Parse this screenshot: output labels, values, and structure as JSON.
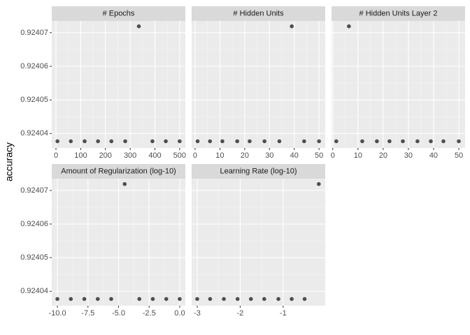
{
  "ylabel": "accuracy",
  "chart_data": [
    {
      "type": "scatter",
      "title": "# Epochs",
      "color": "#333333",
      "x": [
        6,
        60,
        116,
        170,
        224,
        280,
        335,
        390,
        444,
        500
      ],
      "values": [
        0.9240377,
        0.9240377,
        0.9240377,
        0.9240377,
        0.9240377,
        0.9240377,
        0.9240719,
        0.9240377,
        0.9240377,
        0.9240377
      ],
      "xlim": [
        -17,
        523
      ],
      "xticks": [
        0,
        100,
        200,
        300,
        400,
        500
      ],
      "ylim": [
        0.9240357,
        0.9240735
      ],
      "yticks": [
        0.92404,
        0.92405,
        0.92406,
        0.92407
      ]
    },
    {
      "type": "scatter",
      "title": "# Hidden Units",
      "color": "#333333",
      "x": [
        1,
        6,
        11,
        17,
        22,
        28,
        34,
        39,
        44,
        50
      ],
      "values": [
        0.9240377,
        0.9240377,
        0.9240377,
        0.9240377,
        0.9240377,
        0.9240377,
        0.9240377,
        0.9240719,
        0.9240377,
        0.9240377
      ],
      "xlim": [
        -1.4,
        52.5
      ],
      "xticks": [
        0,
        10,
        20,
        30,
        40,
        50
      ],
      "ylim": [
        0.9240357,
        0.9240735
      ],
      "yticks": [
        0.92404,
        0.92405,
        0.92406,
        0.92407
      ]
    },
    {
      "type": "scatter",
      "title": "# Hidden Units Layer 2",
      "color": "#333333",
      "x": [
        1.4,
        6.4,
        11.7,
        17.5,
        22.5,
        27.8,
        33.6,
        38.9,
        43.9,
        50
      ],
      "values": [
        0.9240377,
        0.9240719,
        0.9240377,
        0.9240377,
        0.9240377,
        0.9240377,
        0.9240377,
        0.9240377,
        0.9240377,
        0.9240377
      ],
      "xlim": [
        -0.5,
        52.5
      ],
      "xticks": [
        0,
        10,
        20,
        30,
        40,
        50
      ],
      "ylim": [
        0.9240357,
        0.9240735
      ],
      "yticks": [
        0.92404,
        0.92405,
        0.92406,
        0.92407
      ]
    },
    {
      "type": "scatter",
      "title": "Amount of Regularization (log-10)",
      "color": "#333333",
      "x": [
        -10,
        -8.9,
        -7.8,
        -6.7,
        -5.6,
        -4.5,
        -3.3,
        -2.2,
        -1.1,
        0
      ],
      "values": [
        0.9240377,
        0.9240377,
        0.9240377,
        0.9240377,
        0.9240377,
        0.9240719,
        0.9240377,
        0.9240377,
        0.9240377,
        0.9240377
      ],
      "xlim": [
        -10.46,
        0.46
      ],
      "xticks": [
        {
          "value": -10,
          "label": "-10.0"
        },
        -7.5,
        {
          "value": -5,
          "label": "-5.0"
        },
        -2.5,
        {
          "value": 0,
          "label": "0.0"
        }
      ],
      "ylim": [
        0.9240357,
        0.9240735
      ],
      "yticks": [
        0.92404,
        0.92405,
        0.92406,
        0.92407
      ]
    },
    {
      "type": "scatter",
      "title": "Learning Rate (log-10)",
      "color": "#333333",
      "x": [
        -3,
        -2.7,
        -2.38,
        -2.06,
        -1.75,
        -1.44,
        -1.11,
        -0.8,
        -0.5,
        -0.17
      ],
      "values": [
        0.9240377,
        0.9240377,
        0.9240377,
        0.9240377,
        0.9240377,
        0.9240377,
        0.9240377,
        0.9240377,
        0.9240377,
        0.9240719
      ],
      "xlim": [
        -3.13,
        -0.02
      ],
      "xticks": [
        -3,
        -2,
        -1
      ],
      "ylim": [
        0.9240357,
        0.9240735
      ],
      "yticks": [
        0.92404,
        0.92405,
        0.92406,
        0.92407
      ]
    }
  ]
}
